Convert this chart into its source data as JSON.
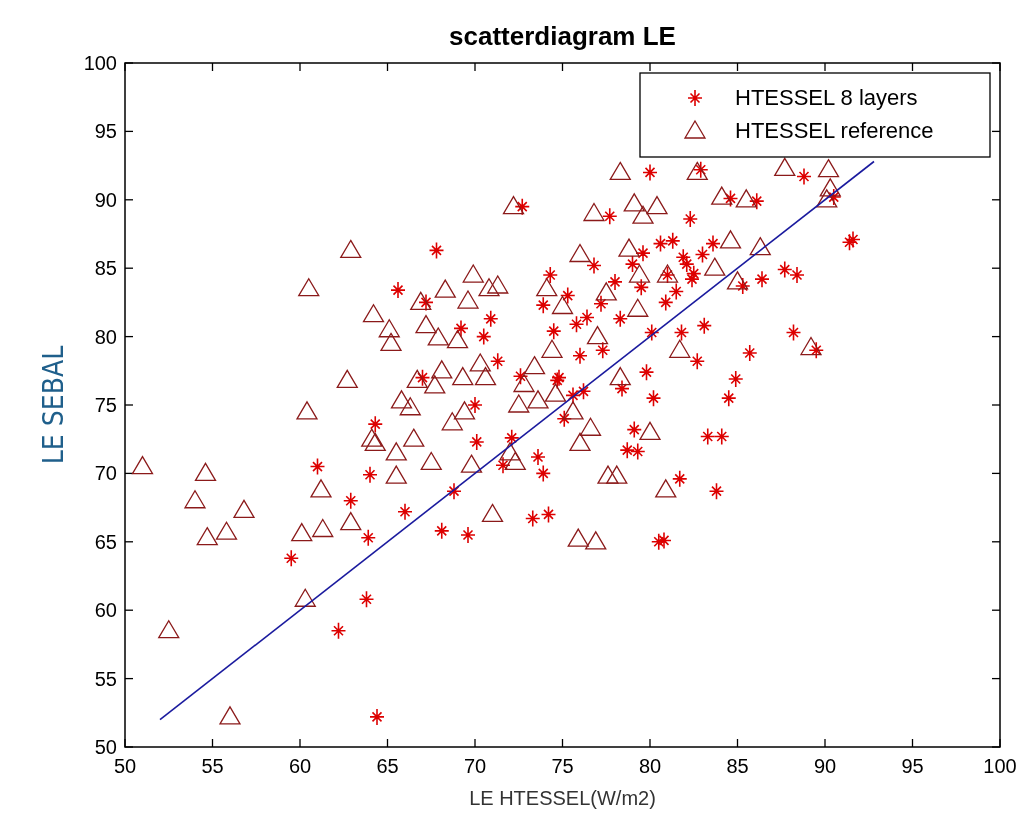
{
  "chart_data": {
    "type": "scatter",
    "title": "scatterdiagram LE",
    "xlabel": "LE HTESSEL(W/m2)",
    "ylabel": "LE SEBAL",
    "xlim": [
      50,
      100
    ],
    "ylim": [
      50,
      100
    ],
    "xticks": [
      50,
      55,
      60,
      65,
      70,
      75,
      80,
      85,
      90,
      95,
      100
    ],
    "yticks": [
      50,
      55,
      60,
      65,
      70,
      75,
      80,
      85,
      90,
      95,
      100
    ],
    "grid": false,
    "legend": "top right",
    "series": [
      {
        "name": "HTESSEL 8 layers",
        "color": "#dd0000",
        "marker": "cross",
        "x": [
          59.5,
          61,
          62.2,
          62.9,
          63.8,
          63.9,
          64,
          64.3,
          64.4,
          65.6,
          66,
          67,
          67.8,
          68.1,
          68.8,
          69.2,
          69.6,
          70,
          70.1,
          70.5,
          71.3,
          71.6,
          72.1,
          72.7,
          73.3,
          73.6,
          73.9,
          74.2,
          74.3,
          74.5,
          74.8,
          75.3,
          75.6,
          76,
          76.4,
          76.8,
          77.3,
          77.7,
          78,
          78.4,
          78.7,
          79.1,
          79.3,
          79.6,
          79.8,
          80,
          80.2,
          80.5,
          80.8,
          81,
          81.3,
          81.5,
          81.7,
          81.8,
          82.1,
          82.3,
          82.5,
          82.7,
          82.9,
          83.1,
          83.3,
          83.6,
          83.8,
          84.1,
          84.5,
          84.9,
          85.3,
          85.7,
          86.1,
          86.4,
          87.7,
          88.2,
          88.4,
          88.8,
          89.5,
          90.5,
          91.6,
          91.4,
          75.1,
          76.2,
          77.2,
          78.3,
          79,
          80.1,
          80.6,
          81.9,
          82.4,
          83,
          79.5,
          80.9,
          84.6,
          74.7,
          73.9,
          75.8,
          70.9,
          67.2,
          72.6
        ],
        "values": [
          63.8,
          70.5,
          58.5,
          68,
          60.8,
          65.3,
          69.9,
          73.6,
          52.2,
          83.4,
          67.2,
          77,
          86.3,
          65.8,
          68.7,
          80.6,
          65.5,
          75,
          72.3,
          80,
          78.2,
          70.6,
          72.6,
          89.5,
          66.7,
          71.2,
          70,
          67,
          84.5,
          80.4,
          77,
          83,
          75.7,
          78.6,
          81.4,
          85.2,
          79,
          88.8,
          84,
          76.2,
          71.7,
          73.2,
          71.6,
          86.1,
          77.4,
          92,
          75.5,
          65,
          65.1,
          84.5,
          87,
          83.3,
          69.6,
          80.3,
          85.3,
          88.6,
          84.6,
          78.2,
          92.2,
          80.8,
          72.7,
          86.8,
          68.7,
          72.7,
          75.5,
          76.9,
          83.7,
          78.8,
          89.9,
          84.2,
          84.9,
          80.3,
          84.5,
          91.7,
          79,
          90.2,
          87.1,
          86.9,
          74,
          76,
          82.4,
          81.3,
          85.3,
          80.3,
          86.8,
          85.8,
          84.2,
          86,
          83.6,
          82.5,
          90.1,
          76.8,
          82.3,
          80.9,
          81.3,
          82.5,
          77.1
        ]
      },
      {
        "name": "HTESSEL reference",
        "color": "#8b1a1a",
        "marker": "triangle",
        "x": [
          51,
          52.5,
          54,
          54.6,
          54.7,
          55.8,
          56,
          56.8,
          60.1,
          60.3,
          60.4,
          60.5,
          61.2,
          61.3,
          62.7,
          62.9,
          62.9,
          64.1,
          64.2,
          64.3,
          65.2,
          65.1,
          65.5,
          65.5,
          65.8,
          66.3,
          66.5,
          66.7,
          66.9,
          67.2,
          67.5,
          67.7,
          67.9,
          68.1,
          68.3,
          68.7,
          69,
          69.3,
          69.4,
          69.6,
          69.8,
          69.9,
          70.3,
          70.6,
          70.8,
          71,
          71.3,
          72,
          72.2,
          72.3,
          72.5,
          72.8,
          73.4,
          73.6,
          74.1,
          74.4,
          74.6,
          75,
          75.6,
          75.9,
          76,
          76,
          76.6,
          76.9,
          76.8,
          77.5,
          77.6,
          78.1,
          78.3,
          78.3,
          78.8,
          79.1,
          79.4,
          79.6,
          80,
          80.4,
          80.9,
          81.7,
          82.7,
          83.7,
          84.1,
          84.6,
          85,
          85.5,
          86.3,
          87.7,
          89.2,
          90.1,
          90.2,
          90.3,
          79.3,
          81,
          77
        ],
        "values": [
          70.5,
          58.5,
          68,
          70,
          65.3,
          65.7,
          52.2,
          67.3,
          65.6,
          60.8,
          74.5,
          83.5,
          68.8,
          65.9,
          76.8,
          86.3,
          66.4,
          72.5,
          81.6,
          72.2,
          79.5,
          80.5,
          69.8,
          71.5,
          75.3,
          74.8,
          72.5,
          76.8,
          82.5,
          80.8,
          70.8,
          76.4,
          79.9,
          77.5,
          83.4,
          73.7,
          79.7,
          77,
          74.5,
          82.6,
          70.6,
          84.5,
          78,
          77,
          83.5,
          67,
          83.7,
          71.5,
          89.5,
          70.8,
          75,
          76.5,
          77.8,
          75.3,
          83.5,
          79,
          75.8,
          82.2,
          74.5,
          65.2,
          86,
          72.2,
          73.3,
          65,
          89,
          83.2,
          69.8,
          69.8,
          92,
          77,
          86.4,
          89.7,
          84.5,
          88.8,
          73,
          89.5,
          68.8,
          79,
          92,
          85,
          90.2,
          87,
          84,
          90,
          86.5,
          92.3,
          79.2,
          90,
          92.2,
          90.8,
          82,
          84.5,
          80
        ]
      },
      {
        "type": "line",
        "color": "#1a1a9e",
        "marker": "none",
        "x": [
          52,
          92.8
        ],
        "values": [
          52,
          92.8
        ]
      }
    ]
  }
}
